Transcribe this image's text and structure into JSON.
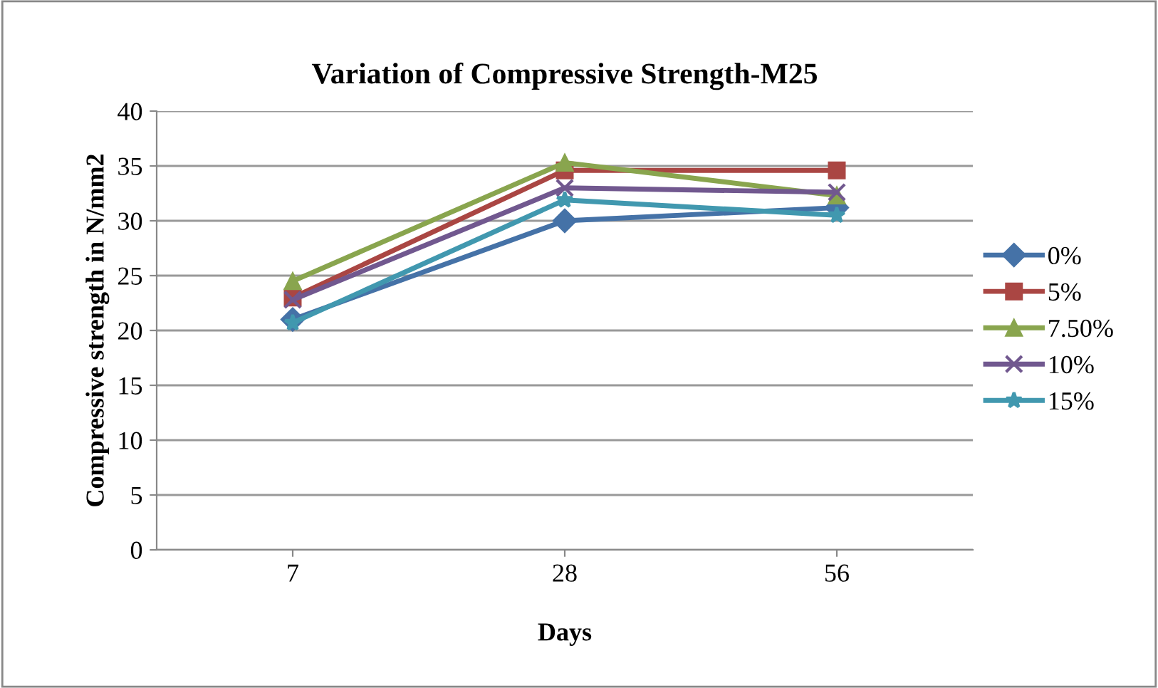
{
  "chart_data": {
    "type": "line",
    "title": "Variation of Compressive Strength-M25",
    "xlabel": "Days",
    "ylabel": "Compressive strength in N/mm2",
    "categories": [
      "7",
      "28",
      "56"
    ],
    "series": [
      {
        "name": "0%",
        "color": "#4572a7",
        "marker": "diamond",
        "values": [
          21,
          30,
          31.2
        ]
      },
      {
        "name": "5%",
        "color": "#aa4643",
        "marker": "square",
        "values": [
          23,
          34.6,
          34.6
        ]
      },
      {
        "name": "7.50%",
        "color": "#89a54e",
        "marker": "triangle",
        "values": [
          24.5,
          35.3,
          32.3
        ]
      },
      {
        "name": "10%",
        "color": "#71588f",
        "marker": "cross",
        "values": [
          22.8,
          33,
          32.6
        ]
      },
      {
        "name": "15%",
        "color": "#4198af",
        "marker": "star",
        "values": [
          20.7,
          31.9,
          30.5
        ]
      }
    ],
    "ylim": [
      0,
      40
    ],
    "yticks": [
      0,
      5,
      10,
      15,
      20,
      25,
      30,
      35,
      40
    ],
    "grid": "y",
    "legend": "right"
  }
}
